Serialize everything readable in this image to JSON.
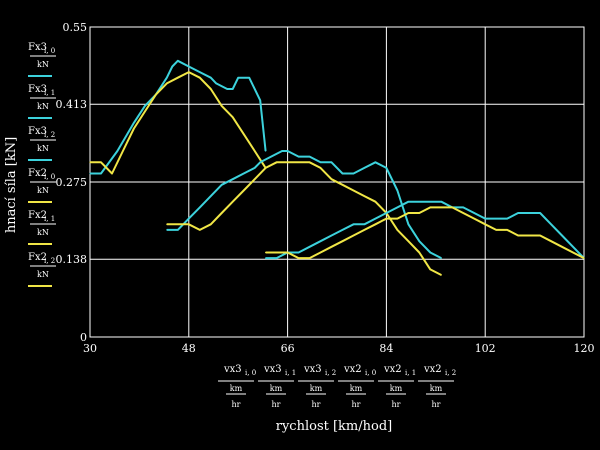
{
  "chart_data": {
    "type": "line",
    "title": "",
    "xlabel": "rychlost [km/hod]",
    "ylabel": "hnací síla [kN]",
    "xlim": [
      30,
      120
    ],
    "ylim": [
      0,
      0.55
    ],
    "x_ticks": [
      "30",
      "48",
      "66",
      "84",
      "102",
      "120"
    ],
    "y_ticks": [
      "0",
      "0.138",
      "0.275",
      "0.413",
      "0.55"
    ],
    "unit_y": "kN",
    "unit_x": [
      "km",
      "hr"
    ],
    "y_legend_vars": [
      "Fx3",
      "Fx3",
      "Fx3",
      "Fx2",
      "Fx2",
      "Fx2"
    ],
    "y_legend_idx": [
      "i, 0",
      "i, 1",
      "i, 2",
      "i, 0",
      "i, 1",
      "i, 2"
    ],
    "x_legend_vars": [
      "vx3",
      "vx3",
      "vx3",
      "vx2",
      "vx2",
      "vx2"
    ],
    "x_legend_idx": [
      "i, 0",
      "i, 1",
      "i, 2",
      "i, 0",
      "i, 1",
      "i, 2"
    ],
    "grid": true,
    "colors": {
      "cyan": "#3cd2dc",
      "yellow": "#f0e646",
      "axis": "#ffffff",
      "background": "#000000"
    },
    "series": [
      {
        "color": "cyan",
        "x": [
          30,
          32,
          35,
          38,
          40,
          42,
          44,
          45,
          46,
          48,
          50,
          52,
          53,
          55,
          56,
          57,
          59,
          61,
          62
        ],
        "y": [
          0.29,
          0.29,
          0.33,
          0.38,
          0.41,
          0.43,
          0.46,
          0.48,
          0.49,
          0.48,
          0.47,
          0.46,
          0.45,
          0.44,
          0.44,
          0.46,
          0.46,
          0.42,
          0.33
        ]
      },
      {
        "color": "yellow",
        "x": [
          30,
          32,
          34,
          36,
          38,
          40,
          42,
          44,
          46,
          48,
          50,
          52,
          54,
          56,
          58,
          60,
          62
        ],
        "y": [
          0.31,
          0.31,
          0.29,
          0.33,
          0.37,
          0.4,
          0.43,
          0.45,
          0.46,
          0.47,
          0.46,
          0.44,
          0.41,
          0.39,
          0.36,
          0.33,
          0.3
        ]
      },
      {
        "color": "cyan",
        "x": [
          44,
          46,
          48,
          50,
          52,
          54,
          56,
          58,
          60,
          61,
          63,
          65,
          66,
          68,
          70,
          72,
          74,
          76,
          78,
          80,
          82,
          84,
          86,
          88,
          90,
          92,
          94
        ],
        "y": [
          0.19,
          0.19,
          0.21,
          0.23,
          0.25,
          0.27,
          0.28,
          0.29,
          0.3,
          0.31,
          0.32,
          0.33,
          0.33,
          0.32,
          0.32,
          0.31,
          0.31,
          0.29,
          0.29,
          0.3,
          0.31,
          0.3,
          0.26,
          0.2,
          0.17,
          0.15,
          0.14
        ]
      },
      {
        "color": "yellow",
        "x": [
          44,
          46,
          48,
          50,
          52,
          54,
          56,
          58,
          60,
          62,
          64,
          66,
          68,
          70,
          72,
          74,
          76,
          78,
          80,
          82,
          84,
          86,
          88,
          90,
          92,
          94
        ],
        "y": [
          0.2,
          0.2,
          0.2,
          0.19,
          0.2,
          0.22,
          0.24,
          0.26,
          0.28,
          0.3,
          0.31,
          0.31,
          0.31,
          0.31,
          0.3,
          0.28,
          0.27,
          0.26,
          0.25,
          0.24,
          0.22,
          0.19,
          0.17,
          0.15,
          0.12,
          0.11
        ]
      },
      {
        "color": "cyan",
        "x": [
          62,
          64,
          66,
          68,
          70,
          72,
          74,
          76,
          78,
          80,
          82,
          84,
          86,
          88,
          90,
          92,
          94,
          96,
          98,
          100,
          102,
          104,
          106,
          108,
          110,
          112,
          114,
          116,
          118,
          120
        ],
        "y": [
          0.14,
          0.14,
          0.15,
          0.15,
          0.16,
          0.17,
          0.18,
          0.19,
          0.2,
          0.2,
          0.21,
          0.22,
          0.23,
          0.24,
          0.24,
          0.24,
          0.24,
          0.23,
          0.23,
          0.22,
          0.21,
          0.21,
          0.21,
          0.22,
          0.22,
          0.22,
          0.2,
          0.18,
          0.16,
          0.14
        ]
      },
      {
        "color": "yellow",
        "x": [
          62,
          64,
          66,
          68,
          70,
          72,
          74,
          76,
          78,
          80,
          82,
          84,
          86,
          88,
          90,
          92,
          94,
          96,
          98,
          100,
          102,
          104,
          106,
          108,
          110,
          112,
          114,
          116,
          118,
          120
        ],
        "y": [
          0.15,
          0.15,
          0.15,
          0.14,
          0.14,
          0.15,
          0.16,
          0.17,
          0.18,
          0.19,
          0.2,
          0.21,
          0.21,
          0.22,
          0.22,
          0.23,
          0.23,
          0.23,
          0.22,
          0.21,
          0.2,
          0.19,
          0.19,
          0.18,
          0.18,
          0.18,
          0.17,
          0.16,
          0.15,
          0.14
        ]
      }
    ]
  }
}
